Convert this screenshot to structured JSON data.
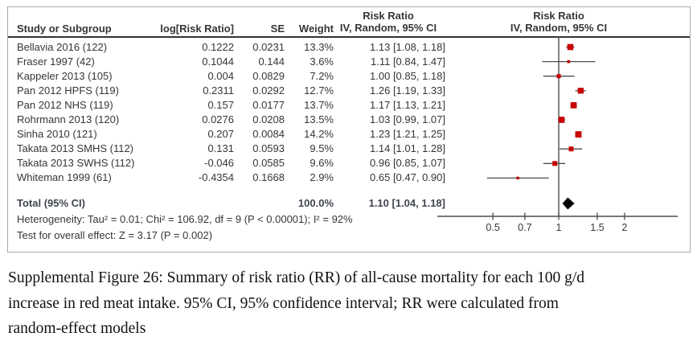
{
  "figure": {
    "header": {
      "col_study": "Study or Subgroup",
      "col_log_rr": "log[Risk Ratio]",
      "col_se": "SE",
      "col_weight": "Weight",
      "stats_group_line1": "Risk Ratio",
      "stats_group_line2": "IV, Random, 95% CI",
      "plot_group_line1": "Risk Ratio",
      "plot_group_line2": "IV, Random, 95% CI"
    },
    "footnotes": {
      "heterogeneity": "Heterogeneity: Tau² = 0.01; Chi² = 106.92, df = 9 (P < 0.00001); I² = 92%",
      "overall_effect": "Test for overall effect: Z = 3.17 (P = 0.002)"
    }
  },
  "colors": {
    "marker_red": "#C80000",
    "diamond_black": "#000000",
    "line_gray": "#4D4D4D",
    "text": "#363636",
    "total_text": "#40454E",
    "rule": "#333333",
    "panel_border": "#A8A8A8"
  },
  "chart_data": {
    "type": "scatter",
    "subtype": "forest-plot",
    "title": "Risk Ratio — IV, Random, 95% CI",
    "x_axis": {
      "scale": "log10",
      "ticks": [
        0.5,
        0.7,
        1,
        1.5,
        2
      ],
      "label": ""
    },
    "columns": [
      "Study or Subgroup",
      "log[Risk Ratio]",
      "SE",
      "Weight",
      "IV, Random, 95% CI"
    ],
    "studies": [
      {
        "label": "Bellavia 2016 (122)",
        "log_rr": "0.1222",
        "se": "0.0231",
        "weight": "13.3%",
        "weight_pct": 13.3,
        "rr": 1.13,
        "ci_low": 1.08,
        "ci_high": 1.18,
        "rr_text": "1.13 [1.08, 1.18]"
      },
      {
        "label": "Fraser 1997 (42)",
        "log_rr": "0.1044",
        "se": "0.144",
        "weight": "3.6%",
        "weight_pct": 3.6,
        "rr": 1.11,
        "ci_low": 0.84,
        "ci_high": 1.47,
        "rr_text": "1.11 [0.84, 1.47]"
      },
      {
        "label": "Kappeler 2013 (105)",
        "log_rr": "0.004",
        "se": "0.0829",
        "weight": "7.2%",
        "weight_pct": 7.2,
        "rr": 1.0,
        "ci_low": 0.85,
        "ci_high": 1.18,
        "rr_text": "1.00 [0.85, 1.18]"
      },
      {
        "label": "Pan 2012 HPFS (119)",
        "log_rr": "0.2311",
        "se": "0.0292",
        "weight": "12.7%",
        "weight_pct": 12.7,
        "rr": 1.26,
        "ci_low": 1.19,
        "ci_high": 1.33,
        "rr_text": "1.26 [1.19, 1.33]"
      },
      {
        "label": "Pan 2012 NHS (119)",
        "log_rr": "0.157",
        "se": "0.0177",
        "weight": "13.7%",
        "weight_pct": 13.7,
        "rr": 1.17,
        "ci_low": 1.13,
        "ci_high": 1.21,
        "rr_text": "1.17 [1.13, 1.21]"
      },
      {
        "label": "Rohrmann 2013 (120)",
        "log_rr": "0.0276",
        "se": "0.0208",
        "weight": "13.5%",
        "weight_pct": 13.5,
        "rr": 1.03,
        "ci_low": 0.99,
        "ci_high": 1.07,
        "rr_text": "1.03 [0.99, 1.07]"
      },
      {
        "label": "Sinha 2010 (121)",
        "log_rr": "0.207",
        "se": "0.0084",
        "weight": "14.2%",
        "weight_pct": 14.2,
        "rr": 1.23,
        "ci_low": 1.21,
        "ci_high": 1.25,
        "rr_text": "1.23 [1.21, 1.25]"
      },
      {
        "label": "Takata 2013 SMHS (112)",
        "log_rr": "0.131",
        "se": "0.0593",
        "weight": "9.5%",
        "weight_pct": 9.5,
        "rr": 1.14,
        "ci_low": 1.01,
        "ci_high": 1.28,
        "rr_text": "1.14 [1.01, 1.28]"
      },
      {
        "label": "Takata 2013 SWHS (112)",
        "log_rr": "-0.046",
        "se": "0.0585",
        "weight": "9.6%",
        "weight_pct": 9.6,
        "rr": 0.96,
        "ci_low": 0.85,
        "ci_high": 1.07,
        "rr_text": "0.96 [0.85, 1.07]"
      },
      {
        "label": "Whiteman 1999 (61)",
        "log_rr": "-0.4354",
        "se": "0.1668",
        "weight": "2.9%",
        "weight_pct": 2.9,
        "rr": 0.65,
        "ci_low": 0.47,
        "ci_high": 0.9,
        "rr_text": "0.65 [0.47, 0.90]"
      }
    ],
    "total": {
      "label": "Total (95% CI)",
      "weight": "100.0%",
      "rr": 1.1,
      "ci_low": 1.04,
      "ci_high": 1.18,
      "rr_text": "1.10 [1.04, 1.18]"
    },
    "heterogeneity": "Tau² = 0.01; Chi² = 106.92, df = 9 (P < 0.00001); I² = 92%",
    "overall_effect_test": "Z = 3.17 (P = 0.002)",
    "legend_position": "none",
    "grid": false
  },
  "caption_lines": [
    "Supplemental Figure 26: Summary of risk ratio (RR) of all-cause mortality for each 100 g/d",
    "increase in red meat intake. 95% CI, 95% confidence interval; RR were calculated from",
    "random-effect models"
  ]
}
